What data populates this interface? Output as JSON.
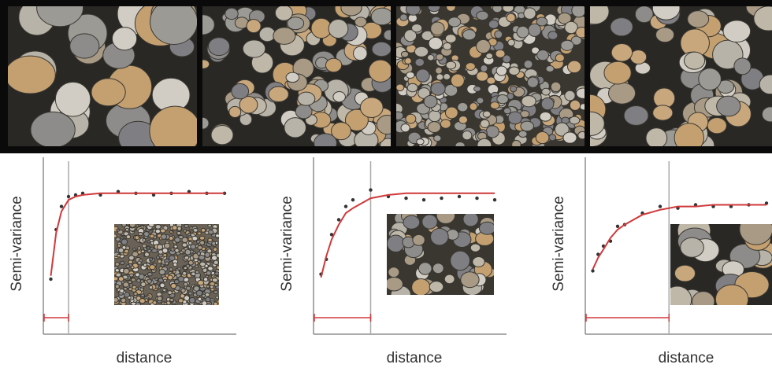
{
  "chart_data": [
    {
      "type": "scatter",
      "x_label": "distance",
      "y_label": "Semi-variance",
      "xlim": [
        0,
        1
      ],
      "ylim": [
        0,
        1
      ],
      "range": 0.12,
      "range_color": "#d0393b",
      "x": [
        0.02,
        0.05,
        0.08,
        0.12,
        0.16,
        0.2,
        0.3,
        0.4,
        0.5,
        0.6,
        0.7,
        0.8,
        0.9,
        1.0
      ],
      "series": [
        {
          "color": "#333333",
          "style": "markers",
          "values": [
            0.3,
            0.6,
            0.74,
            0.8,
            0.81,
            0.82,
            0.81,
            0.83,
            0.82,
            0.81,
            0.82,
            0.83,
            0.82,
            0.82
          ]
        },
        {
          "color": "#d0393b",
          "style": "line",
          "values": [
            0.32,
            0.58,
            0.71,
            0.78,
            0.8,
            0.81,
            0.82,
            0.82,
            0.82,
            0.82,
            0.82,
            0.82,
            0.82,
            0.82
          ]
        }
      ]
    },
    {
      "type": "scatter",
      "x_label": "distance",
      "y_label": "Semi-variance",
      "xlim": [
        0,
        1
      ],
      "ylim": [
        0,
        1
      ],
      "range": 0.3,
      "range_color": "#d0393b",
      "x": [
        0.02,
        0.05,
        0.08,
        0.12,
        0.16,
        0.2,
        0.3,
        0.4,
        0.5,
        0.6,
        0.7,
        0.8,
        0.9,
        1.0
      ],
      "series": [
        {
          "color": "#333333",
          "style": "markers",
          "values": [
            0.33,
            0.42,
            0.57,
            0.66,
            0.74,
            0.78,
            0.84,
            0.8,
            0.79,
            0.78,
            0.79,
            0.8,
            0.79,
            0.78
          ]
        },
        {
          "color": "#d0393b",
          "style": "line",
          "values": [
            0.31,
            0.44,
            0.54,
            0.63,
            0.7,
            0.73,
            0.79,
            0.81,
            0.82,
            0.82,
            0.82,
            0.82,
            0.82,
            0.82
          ]
        }
      ]
    },
    {
      "type": "scatter",
      "x_label": "distance",
      "y_label": "Semi-variance",
      "xlim": [
        0,
        1
      ],
      "ylim": [
        0,
        1
      ],
      "range": 0.45,
      "range_color": "#d0393b",
      "x": [
        0.02,
        0.05,
        0.08,
        0.12,
        0.16,
        0.2,
        0.3,
        0.4,
        0.5,
        0.6,
        0.7,
        0.8,
        0.9,
        1.0
      ],
      "series": [
        {
          "color": "#333333",
          "style": "markers",
          "values": [
            0.35,
            0.45,
            0.5,
            0.53,
            0.62,
            0.63,
            0.7,
            0.74,
            0.73,
            0.75,
            0.74,
            0.74,
            0.75,
            0.76
          ]
        },
        {
          "color": "#d0393b",
          "style": "line",
          "values": [
            0.36,
            0.43,
            0.48,
            0.55,
            0.6,
            0.63,
            0.69,
            0.72,
            0.74,
            0.74,
            0.75,
            0.75,
            0.75,
            0.75
          ]
        }
      ]
    }
  ]
}
